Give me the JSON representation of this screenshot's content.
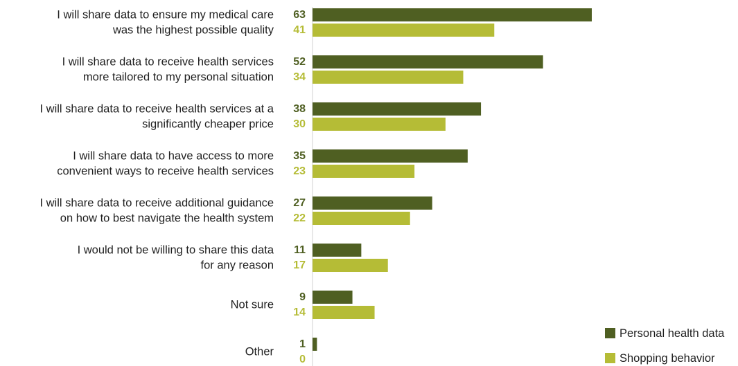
{
  "chart_data": {
    "type": "bar",
    "orientation": "horizontal",
    "categories": [
      [
        "I will share data to ensure my medical care",
        "was the highest possible quality"
      ],
      [
        "I will share data to receive health services",
        "more tailored to my personal situation"
      ],
      [
        "I will share data to receive health services at a",
        "significantly cheaper price"
      ],
      [
        "I will share data to have access to more",
        "convenient ways to receive health services"
      ],
      [
        "I will share data to receive additional guidance",
        "on how to best navigate the health system"
      ],
      [
        "I would not be willing to share this data",
        "for any reason"
      ],
      [
        "Not sure"
      ],
      [
        "Other"
      ]
    ],
    "series": [
      {
        "name": "Personal health data",
        "color": "#4f5f22",
        "values": [
          63,
          52,
          38,
          35,
          27,
          11,
          9,
          1
        ]
      },
      {
        "name": "Shopping behavior",
        "color": "#b5bc36",
        "values": [
          41,
          34,
          30,
          23,
          22,
          17,
          14,
          0
        ]
      }
    ],
    "xlim": [
      0,
      63
    ],
    "grid": false,
    "legend_position": "bottom-right",
    "title": "",
    "xlabel": "",
    "ylabel": ""
  }
}
